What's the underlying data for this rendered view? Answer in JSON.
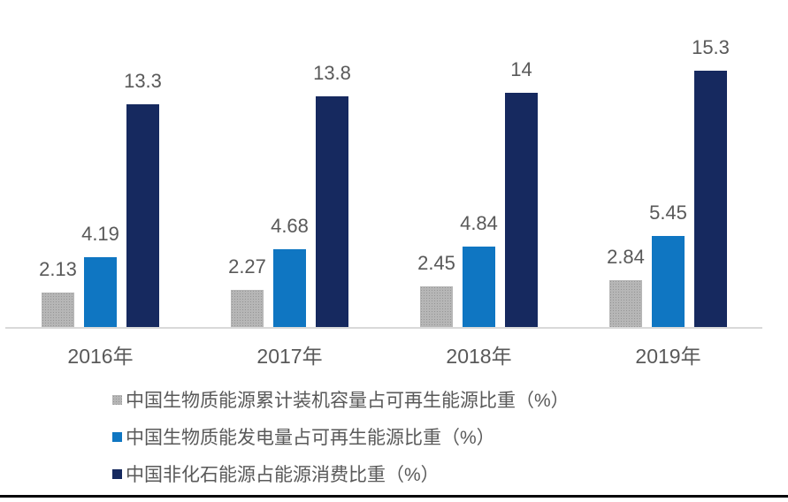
{
  "chart_data": {
    "type": "bar",
    "title": "",
    "categories": [
      "2016年",
      "2017年",
      "2018年",
      "2019年"
    ],
    "series": [
      {
        "name": "中国生物质能源累计装机容量占可再生能源比重（%）",
        "values": [
          2.13,
          2.27,
          2.45,
          2.84
        ],
        "labels": [
          "2.13",
          "2.27",
          "2.45",
          "2.84"
        ],
        "color": "#a8a8a8",
        "pattern": "dotted"
      },
      {
        "name": "中国生物质能发电量占可再生能源比重（%）",
        "values": [
          4.19,
          4.68,
          4.84,
          5.45
        ],
        "labels": [
          "4.19",
          "4.68",
          "4.84",
          "5.45"
        ],
        "color": "#0f76c2",
        "pattern": "solid"
      },
      {
        "name": "中国非化石能源占能源消费比重（%）",
        "values": [
          13.3,
          13.8,
          14,
          15.3
        ],
        "labels": [
          "13.3",
          "13.8",
          "14",
          "15.3"
        ],
        "color": "#16295f",
        "pattern": "solid"
      }
    ],
    "xlabel": "",
    "ylabel": "",
    "ylim": [
      0,
      16
    ],
    "grid": false,
    "axis_line_color": "#d9d9d9",
    "text_color": "#595959",
    "legend_position": "bottom-left",
    "data_labels_shown": true
  }
}
